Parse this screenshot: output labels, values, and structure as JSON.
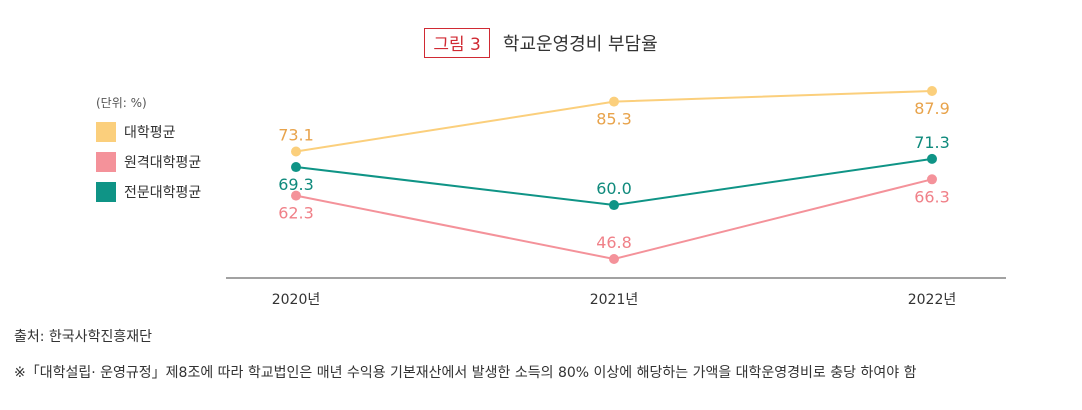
{
  "header": {
    "figure_label": "그림 3",
    "title": "학교운영경비 부담율"
  },
  "legend": {
    "unit": "(단위: %)",
    "items": [
      {
        "label": "대학평균",
        "color": "#fbcf7c"
      },
      {
        "label": "원격대학평균",
        "color": "#f4929a"
      },
      {
        "label": "전문대학평균",
        "color": "#0f9486"
      }
    ]
  },
  "chart_data": {
    "type": "line",
    "categories": [
      "2020년",
      "2021년",
      "2022년"
    ],
    "series": [
      {
        "name": "대학평균",
        "values": [
          73.1,
          85.3,
          87.9
        ],
        "color": "#fbcf7c",
        "label_color": "#e8a34b"
      },
      {
        "name": "원격대학평균",
        "values": [
          62.3,
          46.8,
          66.3
        ],
        "color": "#f4929a",
        "label_color": "#f08088"
      },
      {
        "name": "전문대학평균",
        "values": [
          69.3,
          60.0,
          71.3
        ],
        "color": "#0f9486",
        "label_color": "#0f8a7c"
      }
    ],
    "value_labels": {
      "대학평균": [
        "73.1",
        "85.3",
        "87.9"
      ],
      "원격대학평균": [
        "62.3",
        "46.8",
        "66.3"
      ],
      "전문대학평균": [
        "69.3",
        "60.0",
        "71.3"
      ]
    },
    "grid": false
  },
  "footer": {
    "source": "출처: 한국사학진흥재단",
    "note": "※「대학설립· 운영규정」제8조에 따라 학교법인은 매년 수익용 기본재산에서 발생한 소득의 80% 이상에 해당하는 가액을 대학운영경비로 충당 하여야 함"
  }
}
